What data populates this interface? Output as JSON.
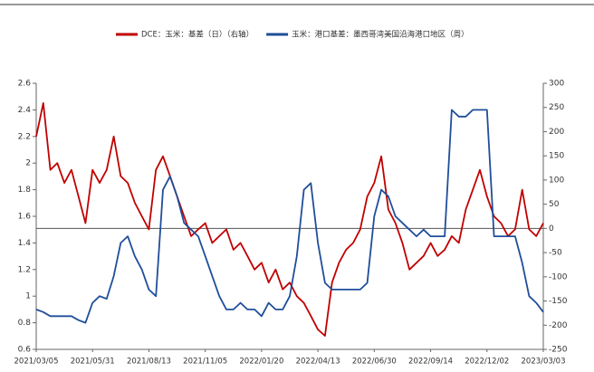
{
  "chart_data": {
    "type": "line",
    "categories": [
      "2021/03/05",
      null,
      null,
      null,
      null,
      null,
      null,
      null,
      "2021/05/31",
      null,
      null,
      null,
      null,
      null,
      null,
      null,
      "2021/08/13",
      null,
      null,
      null,
      null,
      null,
      null,
      null,
      "2021/11/05",
      null,
      null,
      null,
      null,
      null,
      null,
      null,
      "2022/01/20",
      null,
      null,
      null,
      null,
      null,
      null,
      null,
      "2022/04/13",
      null,
      null,
      null,
      null,
      null,
      null,
      null,
      "2022/06/30",
      null,
      null,
      null,
      null,
      null,
      null,
      null,
      "2022/09/14",
      null,
      null,
      null,
      null,
      null,
      null,
      null,
      "2022/12/02",
      null,
      null,
      null,
      null,
      null,
      null,
      null,
      "2023/03/03"
    ],
    "series": [
      {
        "name": "DCE：玉米：基差（日）（右轴）",
        "color": "#c00000",
        "axis": "y2",
        "values": [
          190,
          259,
          121,
          135,
          94,
          121,
          66,
          11,
          121,
          94,
          121,
          190,
          108,
          94,
          53,
          25,
          -2,
          121,
          149,
          108,
          66,
          25,
          -16,
          -2,
          11,
          -30,
          -16,
          -2,
          -44,
          -30,
          -57,
          -85,
          -71,
          -112,
          -85,
          -126,
          -112,
          -140,
          -154,
          -181,
          -209,
          -222,
          -112,
          -71,
          -44,
          -30,
          -2,
          66,
          94,
          149,
          39,
          11,
          -30,
          -85,
          -71,
          -57,
          -30,
          -57,
          -44,
          -16,
          -30,
          39,
          80,
          121,
          66,
          25,
          11,
          -16,
          -2,
          80,
          -2,
          -16,
          11
        ]
      },
      {
        "name": "玉米：港口基差：墨西哥湾美国沿海港口地区（周）",
        "color": "#1f4e9a",
        "values": [
          0.9,
          0.88,
          0.85,
          0.85,
          0.85,
          0.85,
          0.82,
          0.8,
          0.95,
          1.0,
          0.98,
          1.15,
          1.4,
          1.45,
          1.3,
          1.2,
          1.05,
          1.0,
          1.8,
          1.9,
          1.75,
          1.55,
          1.5,
          1.45,
          1.3,
          1.15,
          1.0,
          0.9,
          0.9,
          0.95,
          0.9,
          0.9,
          0.85,
          0.95,
          0.9,
          0.9,
          1.0,
          1.3,
          1.8,
          1.85,
          1.4,
          1.1,
          1.05,
          1.05,
          1.05,
          1.05,
          1.05,
          1.1,
          1.6,
          1.8,
          1.75,
          1.6,
          1.55,
          1.5,
          1.45,
          1.5,
          1.45,
          1.45,
          1.45,
          2.4,
          2.35,
          2.35,
          2.4,
          2.4,
          2.4,
          1.45,
          1.45,
          1.45,
          1.45,
          1.25,
          1.0,
          0.95,
          0.88
        ]
      }
    ],
    "ylim": [
      0.6,
      2.6
    ],
    "yticks": [
      0.6,
      0.8,
      1,
      1.2,
      1.4,
      1.6,
      1.8,
      2,
      2.2,
      2.4,
      2.6
    ],
    "y2lim": [
      -250,
      300
    ],
    "y2ticks": [
      -250,
      -200,
      -150,
      -100,
      -50,
      0,
      50,
      100,
      150,
      200,
      250,
      300
    ]
  }
}
